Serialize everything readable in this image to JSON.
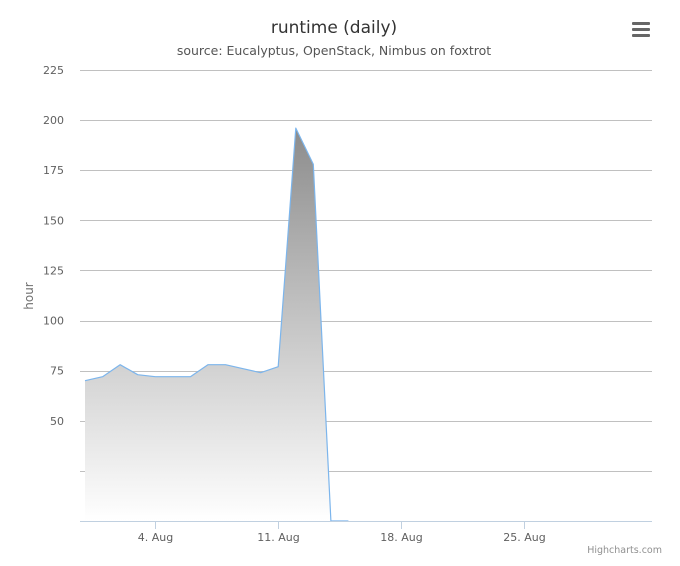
{
  "chart_data": {
    "type": "area",
    "title": "runtime (daily)",
    "subtitle": "source: Eucalyptus, OpenStack, Nimbus on foxtrot",
    "ylabel": "hour",
    "xlabel": "",
    "x_tick_labels": [
      "4. Aug",
      "11. Aug",
      "18. Aug",
      "25. Aug"
    ],
    "x_tick_dates": [
      "2013-08-04",
      "2013-08-11",
      "2013-08-18",
      "2013-08-25"
    ],
    "y_tick_labels": [
      "50",
      "75",
      "100",
      "125",
      "150",
      "175",
      "200",
      "225"
    ],
    "y_tick_values": [
      50,
      75,
      100,
      125,
      150,
      175,
      200,
      225
    ],
    "gridlines": [
      0,
      25,
      50,
      75,
      100,
      125,
      150,
      175,
      200,
      225
    ],
    "xlim": [
      "2013-07-31",
      "2013-09-01"
    ],
    "ylim": [
      0,
      225
    ],
    "grid": true,
    "legend": "none",
    "series": [
      {
        "x": [
          "2013-07-31",
          "2013-08-01",
          "2013-08-02",
          "2013-08-03",
          "2013-08-04",
          "2013-08-05",
          "2013-08-06",
          "2013-08-07",
          "2013-08-08",
          "2013-08-09",
          "2013-08-10",
          "2013-08-11",
          "2013-08-12",
          "2013-08-13",
          "2013-08-14",
          "2013-08-15"
        ],
        "values": [
          70,
          72,
          78,
          73,
          72,
          72,
          72,
          78,
          78,
          76,
          74,
          77,
          196,
          178,
          0,
          0
        ]
      }
    ]
  },
  "colors": {
    "line": "#7cb5ec",
    "fill_top": "#8c8c8c",
    "fill_bottom": "#ffffff",
    "grid": "#c0c0c0",
    "axis": "#c0d0e0"
  },
  "menu": {
    "icon": "hamburger-menu-icon"
  },
  "credits": {
    "text": "Highcharts.com"
  }
}
